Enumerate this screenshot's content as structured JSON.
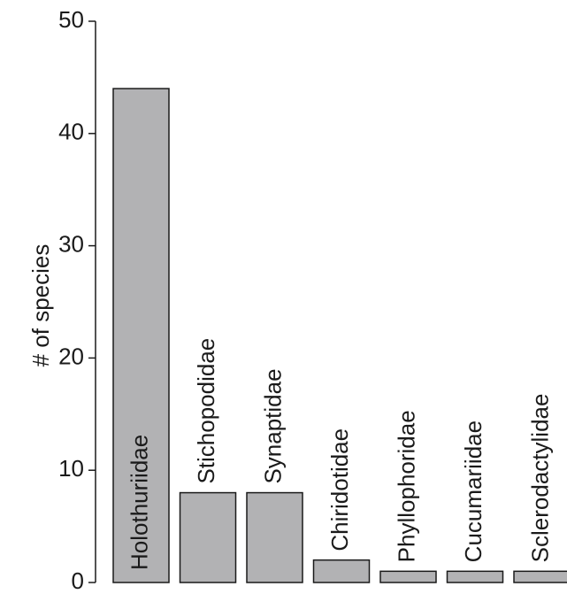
{
  "chart_data": {
    "type": "bar",
    "title": "",
    "xlabel": "",
    "ylabel": "# of species",
    "ylim": [
      0,
      50
    ],
    "yticks": [
      0,
      10,
      20,
      30,
      40,
      50
    ],
    "grid": false,
    "legend": "none",
    "categories": [
      "Holothuriidae",
      "Stichopodidae",
      "Synaptidae",
      "Chiridotidae",
      "Phyllophoridae",
      "Cucumariidae",
      "Sclerodactylidae"
    ],
    "values": [
      44,
      8,
      8,
      2,
      1,
      1,
      1
    ],
    "bar_color": "#b2b2b4",
    "bar_edge_color": "#1a1a1a",
    "axis_color": "#1a1a1a",
    "text_color": "#1a1a1a"
  }
}
